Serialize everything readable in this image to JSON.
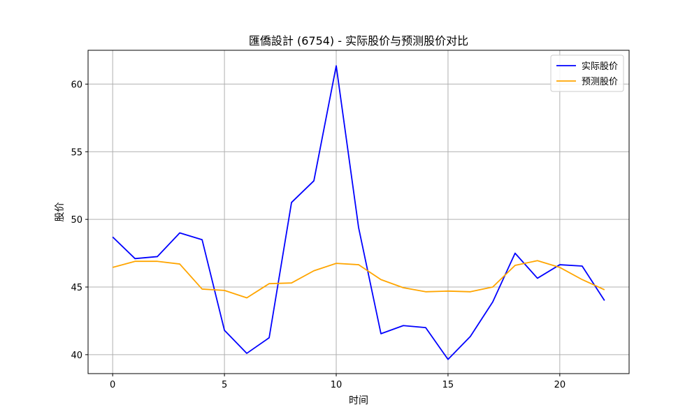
{
  "chart_data": {
    "type": "line",
    "title": "匯僑設計 (6754) - 实际股价与预测股价对比",
    "xlabel": "时间",
    "ylabel": "股价",
    "xlim": [
      -1.1,
      23.1
    ],
    "ylim": [
      38.6,
      62.5
    ],
    "xticks": [
      0,
      5,
      10,
      15,
      20
    ],
    "yticks": [
      40,
      45,
      50,
      55,
      60
    ],
    "grid": true,
    "legend_position": "top-right",
    "x": [
      0,
      1,
      2,
      3,
      4,
      5,
      6,
      7,
      8,
      9,
      10,
      11,
      12,
      13,
      14,
      15,
      16,
      17,
      18,
      19,
      20,
      21,
      22
    ],
    "series": [
      {
        "name": "实际股价",
        "color": "#0000ff",
        "values": [
          48.7,
          47.1,
          47.25,
          49.0,
          48.5,
          41.8,
          40.1,
          41.25,
          51.25,
          52.85,
          61.35,
          49.4,
          41.55,
          42.15,
          42.0,
          39.65,
          41.35,
          43.9,
          47.5,
          45.65,
          46.65,
          46.55,
          44.0
        ]
      },
      {
        "name": "预测股价",
        "color": "#ffa500",
        "values": [
          46.45,
          46.9,
          46.9,
          46.7,
          44.85,
          44.75,
          44.2,
          45.25,
          45.3,
          46.2,
          46.75,
          46.65,
          45.55,
          44.95,
          44.65,
          44.7,
          44.65,
          45.0,
          46.6,
          46.95,
          46.45,
          45.55,
          44.8
        ]
      }
    ]
  }
}
